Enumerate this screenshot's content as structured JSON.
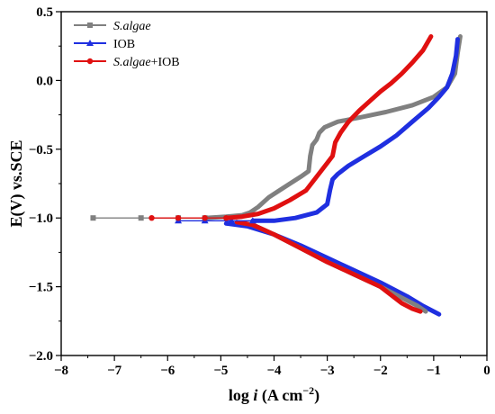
{
  "chart_data": {
    "type": "line",
    "xlabel": "log i (A cm⁻²)",
    "xlabel_parts": {
      "pre": "log ",
      "italic": "i",
      "post": " (A cm",
      "sup": "−2",
      "close": ")"
    },
    "ylabel": "E(V) vs.SCE",
    "xlim": [
      -8,
      0
    ],
    "ylim": [
      -2.0,
      0.5
    ],
    "x_ticks": [
      -8,
      -7,
      -6,
      -5,
      -4,
      -3,
      -2,
      -1,
      0
    ],
    "x_tick_labels": [
      "−8",
      "−7",
      "−6",
      "−5",
      "−4",
      "−3",
      "−2",
      "−1",
      "0"
    ],
    "y_ticks": [
      0.5,
      0.0,
      -0.5,
      -1.0,
      -1.5,
      -2.0
    ],
    "y_tick_labels": [
      "0.5",
      "0.0",
      "−0.5",
      "−1.0",
      "−1.5",
      "−2.0"
    ],
    "legend_position": "top-left",
    "series": [
      {
        "name": "S.algae",
        "legend_parts": {
          "italic": "S.algae",
          "rest": ""
        },
        "color": "#808080",
        "marker": "square",
        "x": [
          -7.4,
          -6.5,
          -5.8,
          -5.3,
          -4.9,
          -4.6,
          -4.45,
          -4.3,
          -4.1,
          -3.9,
          -3.7,
          -3.5,
          -3.35,
          -3.32,
          -3.28,
          -3.2,
          -3.15,
          -3.05,
          -2.8,
          -2.4,
          -1.9,
          -1.4,
          -1.0,
          -0.75,
          -0.6,
          -0.55,
          -0.5
        ],
        "y": [
          -1.0,
          -1.0,
          -1.0,
          -1.0,
          -0.99,
          -0.98,
          -0.96,
          -0.92,
          -0.85,
          -0.8,
          -0.75,
          -0.7,
          -0.66,
          -0.55,
          -0.47,
          -0.43,
          -0.38,
          -0.34,
          -0.3,
          -0.27,
          -0.23,
          -0.18,
          -0.12,
          -0.05,
          0.05,
          0.2,
          0.32
        ]
      },
      {
        "name": "IOB",
        "legend_parts": {
          "italic": "",
          "rest": "IOB"
        },
        "color": "#1f2fe0",
        "marker": "triangle",
        "x": [
          -5.8,
          -5.3,
          -4.8,
          -4.4,
          -4.0,
          -3.6,
          -3.2,
          -3.0,
          -2.95,
          -2.9,
          -2.8,
          -2.6,
          -2.3,
          -2.0,
          -1.7,
          -1.4,
          -1.1,
          -0.9,
          -0.75,
          -0.65,
          -0.58,
          -0.55
        ],
        "y": [
          -1.02,
          -1.02,
          -1.02,
          -1.02,
          -1.02,
          -1.0,
          -0.96,
          -0.9,
          -0.8,
          -0.72,
          -0.68,
          -0.62,
          -0.55,
          -0.48,
          -0.4,
          -0.3,
          -0.2,
          -0.12,
          -0.05,
          0.05,
          0.18,
          0.3
        ]
      },
      {
        "name": "S.algae+IOB",
        "legend_parts": {
          "italic": "S.algae",
          "rest": "+IOB"
        },
        "color": "#e01010",
        "marker": "circle",
        "x": [
          -6.3,
          -5.8,
          -5.3,
          -4.9,
          -4.6,
          -4.3,
          -4.0,
          -3.7,
          -3.4,
          -3.2,
          -3.0,
          -2.9,
          -2.85,
          -2.75,
          -2.6,
          -2.4,
          -2.2,
          -2.0,
          -1.8,
          -1.6,
          -1.4,
          -1.2,
          -1.05
        ],
        "y": [
          -1.0,
          -1.0,
          -1.0,
          -1.0,
          -0.99,
          -0.97,
          -0.93,
          -0.87,
          -0.8,
          -0.7,
          -0.6,
          -0.55,
          -0.45,
          -0.38,
          -0.3,
          -0.22,
          -0.15,
          -0.08,
          -0.02,
          0.05,
          0.13,
          0.22,
          0.32
        ]
      }
    ],
    "cathodic_branches": [
      {
        "series": "IOB",
        "color": "#1f2fe0",
        "x": [
          -4.9,
          -4.5,
          -4.0,
          -3.5,
          -3.0,
          -2.5,
          -2.0,
          -1.5,
          -1.2,
          -1.0,
          -0.9
        ],
        "y": [
          -1.04,
          -1.06,
          -1.12,
          -1.2,
          -1.29,
          -1.38,
          -1.47,
          -1.57,
          -1.64,
          -1.68,
          -1.7
        ]
      },
      {
        "series": "S.algae",
        "color": "#808080",
        "x": [
          -4.7,
          -4.4,
          -4.0,
          -3.5,
          -3.0,
          -2.5,
          -2.0,
          -1.6,
          -1.3,
          -1.15
        ],
        "y": [
          -1.03,
          -1.05,
          -1.12,
          -1.22,
          -1.32,
          -1.41,
          -1.5,
          -1.58,
          -1.64,
          -1.68
        ]
      },
      {
        "series": "S.algae+IOB",
        "color": "#e01010",
        "x": [
          -4.7,
          -4.4,
          -4.0,
          -3.5,
          -3.0,
          -2.5,
          -2.0,
          -1.8,
          -1.6,
          -1.4,
          -1.25
        ],
        "y": [
          -1.03,
          -1.05,
          -1.12,
          -1.22,
          -1.32,
          -1.41,
          -1.5,
          -1.56,
          -1.62,
          -1.66,
          -1.68
        ]
      }
    ]
  }
}
